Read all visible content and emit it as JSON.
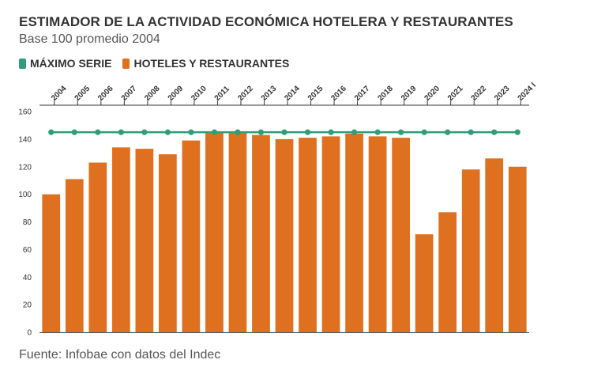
{
  "header": {
    "title": "ESTIMADOR DE LA ACTIVIDAD ECONÓMICA HOTELERA Y RESTAURANTES",
    "subtitle": "Base 100 promedio 2004"
  },
  "legend": [
    {
      "label": "MÁXIMO SERIE",
      "color": "#2e9e78"
    },
    {
      "label": "HOTELES Y RESTAURANTES",
      "color": "#df7020"
    }
  ],
  "footer": {
    "source": "Fuente: Infobae con datos del Indec"
  },
  "chart_data": {
    "type": "bar",
    "categories": [
      "2004",
      "2005",
      "2006",
      "2007",
      "2008",
      "2009",
      "2010",
      "2011",
      "2012",
      "2013",
      "2014",
      "2015",
      "2016",
      "2017",
      "2018",
      "2019",
      "2020",
      "2021",
      "2022",
      "2023",
      "2024 I"
    ],
    "series": [
      {
        "name": "HOTELES Y RESTAURANTES",
        "type": "bar",
        "color": "#df7020",
        "values": [
          100,
          111,
          123,
          134,
          133,
          129,
          139,
          145,
          145,
          143,
          140,
          141,
          142,
          144,
          142,
          141,
          71,
          87,
          118,
          126,
          120
        ]
      },
      {
        "name": "MÁXIMO SERIE",
        "type": "line",
        "color": "#2e9e78",
        "values": [
          145,
          145,
          145,
          145,
          145,
          145,
          145,
          145,
          145,
          145,
          145,
          145,
          145,
          145,
          145,
          145,
          145,
          145,
          145,
          145,
          145
        ]
      }
    ],
    "yticks": [
      0,
      20,
      40,
      60,
      80,
      100,
      120,
      140,
      160
    ],
    "ylim": [
      0,
      160
    ],
    "legend_position": "top-left",
    "grid": false
  }
}
